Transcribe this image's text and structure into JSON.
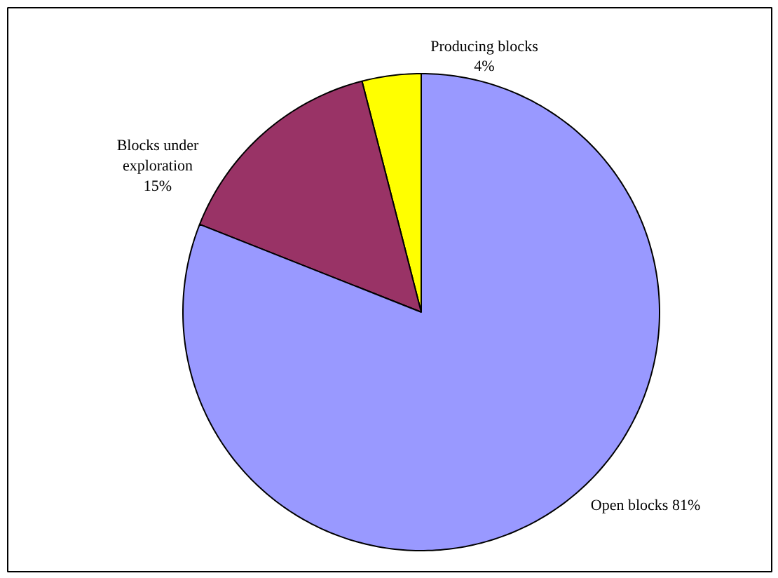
{
  "chart_data": {
    "type": "pie",
    "categories": [
      "Open blocks",
      "Blocks under exploration",
      "Producing blocks"
    ],
    "values": [
      81,
      15,
      4
    ],
    "colors": [
      "#9999ff",
      "#993366",
      "#ffff00"
    ],
    "value_labels": [
      "81%",
      "15%",
      "4%"
    ]
  }
}
